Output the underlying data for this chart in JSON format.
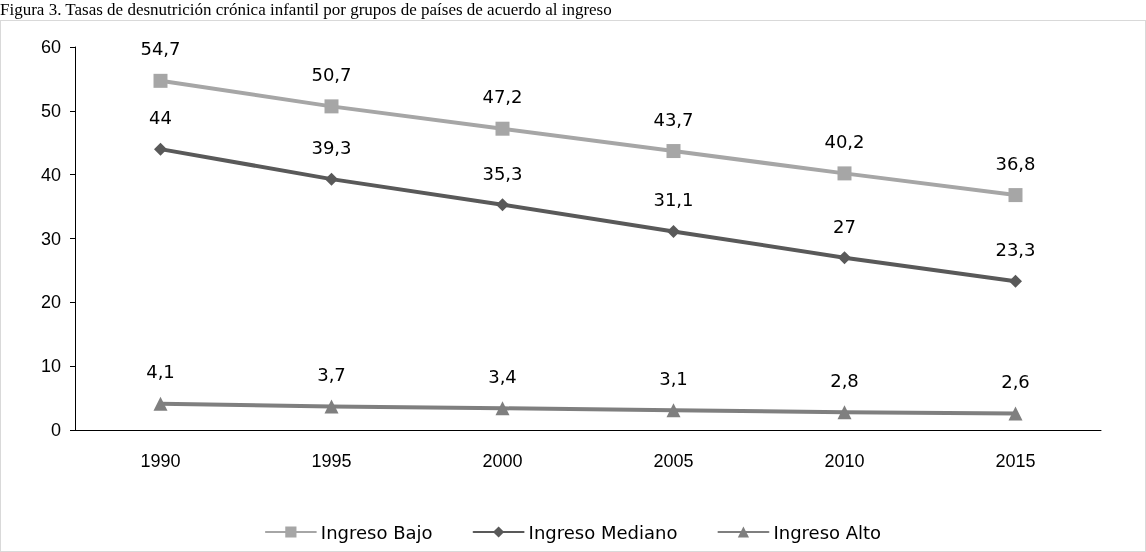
{
  "chart_data": {
    "type": "line",
    "title": "Figura 3. Tasas de desnutrición crónica infantil por grupos de países de acuerdo al ingreso",
    "categories": [
      "1990",
      "1995",
      "2000",
      "2005",
      "2010",
      "2015"
    ],
    "series": [
      {
        "name": "Ingreso Bajo",
        "color": "#a6a6a6",
        "marker": "square",
        "values": [
          54.7,
          50.7,
          47.2,
          43.7,
          40.2,
          36.8
        ],
        "value_labels": [
          "54,7",
          "50,7",
          "47,2",
          "43,7",
          "40,2",
          "36,8"
        ]
      },
      {
        "name": "Ingreso Mediano",
        "color": "#595959",
        "marker": "diamond",
        "values": [
          44,
          39.3,
          35.3,
          31.1,
          27,
          23.3
        ],
        "value_labels": [
          "44",
          "39,3",
          "35,3",
          "31,1",
          "27",
          "23,3"
        ]
      },
      {
        "name": "Ingreso Alto",
        "color": "#7f7f7f",
        "marker": "triangle",
        "values": [
          4.1,
          3.7,
          3.4,
          3.1,
          2.8,
          2.6
        ],
        "value_labels": [
          "4,1",
          "3,7",
          "3,4",
          "3,1",
          "2,8",
          "2,6"
        ]
      }
    ],
    "ylim": [
      0,
      60
    ],
    "yticks": [
      0,
      10,
      20,
      30,
      40,
      50,
      60
    ],
    "grid": false,
    "legend": "bottom",
    "line_style": "solid"
  }
}
